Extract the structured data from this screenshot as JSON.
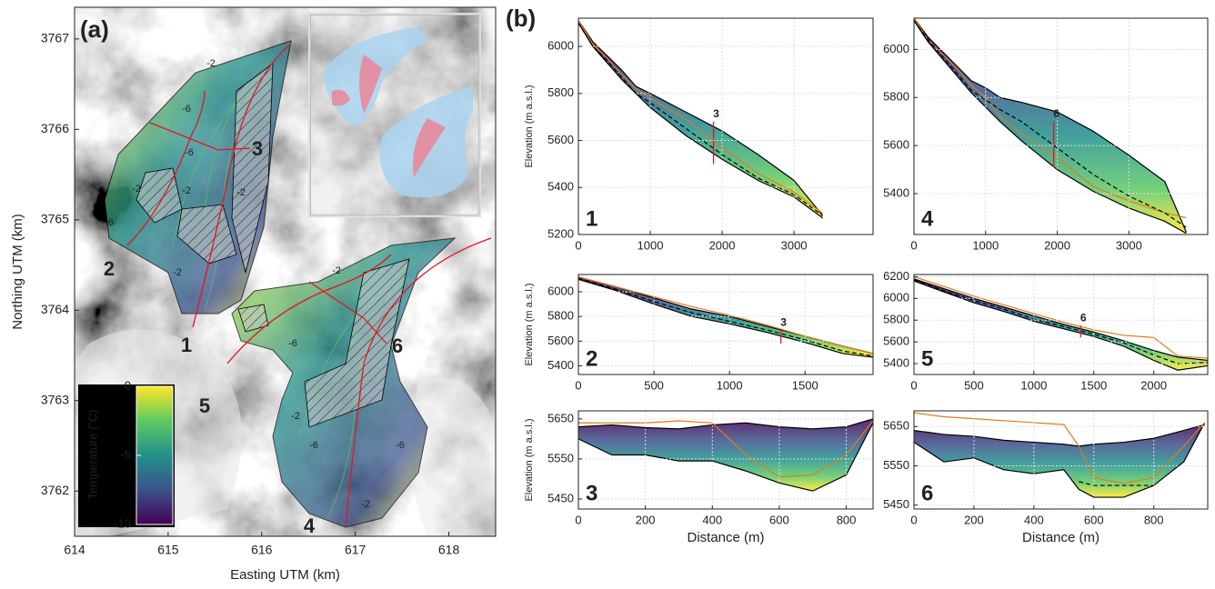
{
  "chart_data": [
    {
      "type": "map",
      "panel_label": "(a)",
      "xlabel": "Easting UTM (km)",
      "ylabel": "Northing UTM (km)",
      "xlim": [
        614,
        618.5
      ],
      "ylim": [
        3761.5,
        3767.35
      ],
      "xticks": [
        614,
        615,
        616,
        617,
        618
      ],
      "yticks": [
        3762,
        3763,
        3764,
        3765,
        3766,
        3767
      ],
      "colorbar": {
        "label": "Temperature (˚C)",
        "lim": [
          -10,
          0
        ],
        "ticks": [
          0,
          -5,
          -10
        ]
      },
      "profile_labels": [
        "1",
        "2",
        "3",
        "4",
        "5",
        "6"
      ],
      "contour_labels": [
        "-2",
        "-6",
        "-6",
        "-2",
        "-2",
        "-2",
        "-6",
        "-2",
        "-2",
        "-6",
        "-2",
        "-6",
        "-6",
        "-2"
      ]
    },
    {
      "type": "line",
      "panel_label": "(b)",
      "label": "1",
      "ylabel": "Elevation (m a.s.l.)",
      "xlim": [
        0,
        4100
      ],
      "ylim": [
        5200,
        6120
      ],
      "xticks": [
        0,
        1000,
        2000,
        3000
      ],
      "yticks": [
        5200,
        5400,
        5600,
        5800,
        6000
      ],
      "grid": true,
      "x": [
        0,
        200,
        400,
        600,
        800,
        1000,
        1500,
        2000,
        2500,
        3000,
        3400
      ],
      "series": [
        {
          "color": "#000000",
          "values": [
            6110,
            6020,
            5960,
            5900,
            5830,
            5800,
            5720,
            5640,
            5540,
            5430,
            5280
          ]
        },
        {
          "color": "#000000",
          "values": [
            6100,
            6000,
            5930,
            5860,
            5800,
            5740,
            5620,
            5520,
            5430,
            5360,
            5270
          ]
        },
        {
          "color": "#e07b1a",
          "values": [
            6110,
            6010,
            5950,
            5880,
            5820,
            5780,
            5690,
            5570,
            5460,
            5380,
            5290
          ]
        },
        {
          "color": "#000000",
          "dashed": true,
          "values": [
            6100,
            6000,
            5940,
            5870,
            5800,
            5760,
            5650,
            5540,
            5440,
            5370,
            5280
          ]
        }
      ],
      "marker": {
        "x": 1880,
        "label": "3",
        "range": [
          5500,
          5680
        ]
      }
    },
    {
      "type": "line",
      "label": "2",
      "ylabel": "Elevation (m a.s.l.)",
      "xlim": [
        0,
        1950
      ],
      "ylim": [
        5330,
        6140
      ],
      "xticks": [
        0,
        500,
        1000,
        1500
      ],
      "yticks": [
        5400,
        5600,
        5800,
        6000
      ],
      "grid": true,
      "x": [
        0,
        250,
        500,
        750,
        1000,
        1250,
        1500,
        1750,
        1950
      ],
      "series": [
        {
          "color": "#000000",
          "values": [
            6120,
            6040,
            5950,
            5860,
            5800,
            5720,
            5640,
            5560,
            5500
          ]
        },
        {
          "color": "#000000",
          "values": [
            6100,
            6010,
            5900,
            5800,
            5740,
            5670,
            5590,
            5500,
            5470
          ]
        },
        {
          "color": "#e07b1a",
          "values": [
            6120,
            6040,
            5960,
            5880,
            5810,
            5730,
            5640,
            5560,
            5500
          ]
        },
        {
          "color": "#000000",
          "dashed": true,
          "values": [
            6110,
            6020,
            5920,
            5830,
            5760,
            5690,
            5610,
            5520,
            5480
          ]
        }
      ],
      "marker": {
        "x": 1340,
        "label": "3",
        "range": [
          5580,
          5690
        ]
      }
    },
    {
      "type": "line",
      "label": "3",
      "ylabel": "Elevation (m a.s.l.)",
      "xlabel": "Distance (m)",
      "xlim": [
        0,
        880
      ],
      "ylim": [
        5425,
        5670
      ],
      "xticks": [
        0,
        200,
        400,
        600,
        800
      ],
      "yticks": [
        5450,
        5550,
        5650
      ],
      "grid": true,
      "x": [
        0,
        100,
        200,
        300,
        400,
        500,
        600,
        700,
        800,
        880
      ],
      "series": [
        {
          "color": "#000000",
          "values": [
            5630,
            5635,
            5628,
            5625,
            5635,
            5640,
            5630,
            5625,
            5630,
            5650
          ]
        },
        {
          "color": "#000000",
          "values": [
            5600,
            5560,
            5560,
            5545,
            5545,
            5520,
            5490,
            5470,
            5510,
            5640
          ]
        },
        {
          "color": "#e07b1a",
          "values": [
            5640,
            5640,
            5640,
            5645,
            5640,
            5560,
            5505,
            5510,
            5560,
            5645
          ]
        }
      ]
    },
    {
      "type": "line",
      "label": "4",
      "xlim": [
        0,
        4100
      ],
      "ylim": [
        5230,
        6130
      ],
      "xticks": [
        0,
        1000,
        2000,
        3000
      ],
      "yticks": [
        5400,
        5600,
        5800,
        6000
      ],
      "grid": true,
      "x": [
        0,
        200,
        400,
        600,
        800,
        1000,
        1200,
        1500,
        2000,
        2500,
        3000,
        3500,
        3800
      ],
      "series": [
        {
          "color": "#000000",
          "values": [
            6130,
            6050,
            5990,
            5930,
            5870,
            5840,
            5800,
            5780,
            5740,
            5660,
            5560,
            5450,
            5240
          ]
        },
        {
          "color": "#000000",
          "values": [
            6120,
            6030,
            5960,
            5890,
            5820,
            5760,
            5700,
            5620,
            5500,
            5410,
            5340,
            5285,
            5235
          ]
        },
        {
          "color": "#e07b1a",
          "values": [
            6130,
            6040,
            5980,
            5920,
            5850,
            5800,
            5720,
            5650,
            5550,
            5430,
            5370,
            5320,
            5300
          ]
        },
        {
          "color": "#000000",
          "dashed": true,
          "values": [
            6120,
            6040,
            5970,
            5900,
            5830,
            5790,
            5750,
            5700,
            5590,
            5480,
            5390,
            5320,
            5260
          ]
        }
      ],
      "marker": {
        "x": 1950,
        "label": "6",
        "range": [
          5510,
          5700
        ]
      }
    },
    {
      "type": "line",
      "label": "5",
      "xlim": [
        0,
        2450
      ],
      "ylim": [
        5300,
        6220
      ],
      "xticks": [
        0,
        500,
        1000,
        1500,
        2000
      ],
      "yticks": [
        5400,
        5600,
        5800,
        6000,
        6200
      ],
      "grid": true,
      "x": [
        0,
        250,
        500,
        750,
        1000,
        1250,
        1500,
        1750,
        2000,
        2200,
        2450
      ],
      "series": [
        {
          "color": "#000000",
          "values": [
            6180,
            6090,
            6000,
            5920,
            5840,
            5760,
            5690,
            5610,
            5520,
            5460,
            5430
          ]
        },
        {
          "color": "#000000",
          "values": [
            6160,
            6060,
            5960,
            5880,
            5790,
            5720,
            5650,
            5560,
            5430,
            5340,
            5380
          ]
        },
        {
          "color": "#e07b1a",
          "values": [
            6200,
            6110,
            6020,
            5940,
            5860,
            5780,
            5710,
            5660,
            5640,
            5470,
            5450
          ]
        },
        {
          "color": "#000000",
          "dashed": true,
          "values": [
            6170,
            6070,
            5980,
            5900,
            5810,
            5740,
            5670,
            5590,
            5480,
            5400,
            5410
          ]
        }
      ],
      "marker": {
        "x": 1390,
        "label": "6",
        "range": [
          5640,
          5750
        ]
      }
    },
    {
      "type": "line",
      "label": "6",
      "xlabel": "Distance (m)",
      "xlim": [
        0,
        980
      ],
      "ylim": [
        5440,
        5690
      ],
      "xticks": [
        0,
        200,
        400,
        600,
        800
      ],
      "yticks": [
        5450,
        5550,
        5650
      ],
      "grid": true,
      "x": [
        0,
        100,
        200,
        300,
        400,
        500,
        550,
        600,
        700,
        800,
        900,
        970
      ],
      "series": [
        {
          "color": "#000000",
          "values": [
            5640,
            5630,
            5625,
            5615,
            5610,
            5605,
            5600,
            5605,
            5610,
            5620,
            5640,
            5655
          ]
        },
        {
          "color": "#000000",
          "values": [
            5610,
            5560,
            5570,
            5540,
            5530,
            5540,
            5490,
            5470,
            5470,
            5500,
            5560,
            5660
          ]
        },
        {
          "color": "#e07b1a",
          "values": [
            5685,
            5675,
            5670,
            5665,
            5660,
            5655,
            5600,
            5520,
            5505,
            5520,
            5600,
            5660
          ]
        },
        {
          "color": "#000000",
          "dashed": true,
          "values": [
            null,
            null,
            null,
            null,
            null,
            null,
            5510,
            5500,
            5500,
            5500,
            null,
            null
          ]
        }
      ]
    }
  ]
}
